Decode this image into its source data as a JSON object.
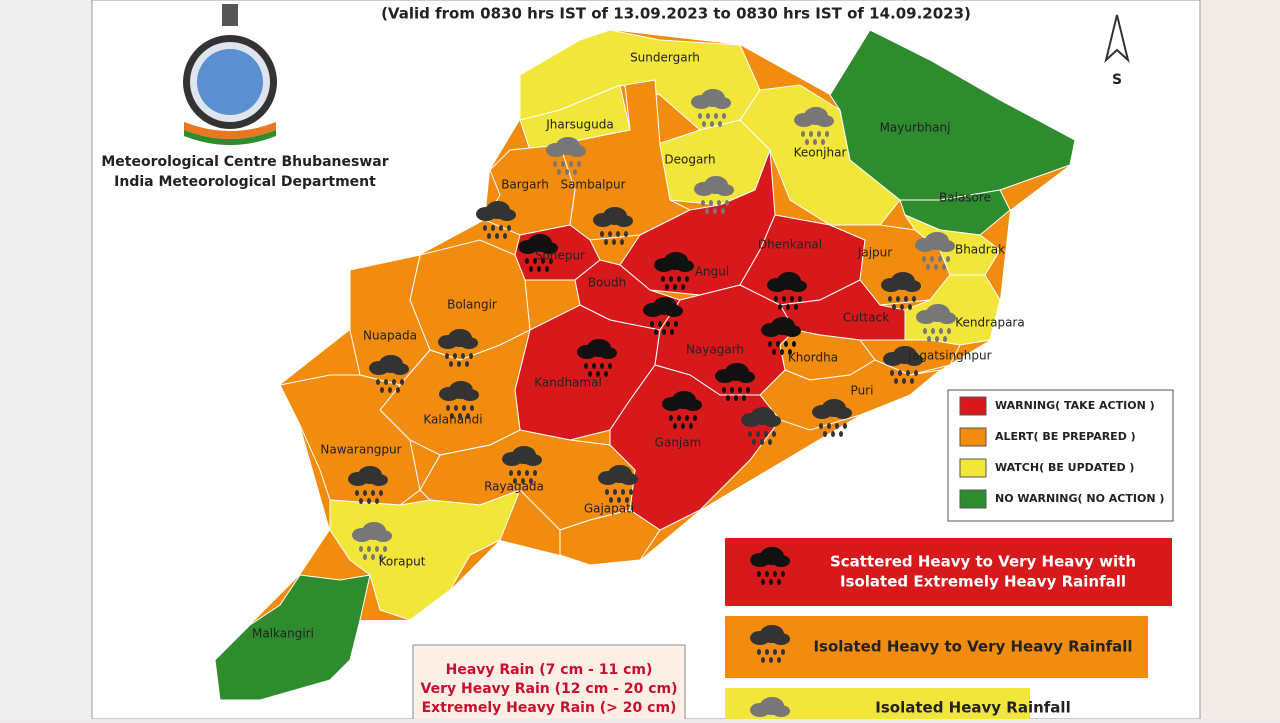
{
  "header": {
    "validity": "(Valid from 0830 hrs IST of 13.09.2023 to 0830 hrs IST of 14.09.2023)"
  },
  "organization": {
    "line1": "Meteorological Centre Bhubaneswar",
    "line2": "India Meteorological Department"
  },
  "north_arrow": "S",
  "warning_legend": [
    {
      "level": "warning",
      "label": "WARNING( TAKE ACTION )",
      "color": "#d7191c"
    },
    {
      "level": "alert",
      "label": "ALERT( BE PREPARED )",
      "color": "#f28c0f"
    },
    {
      "level": "watch",
      "label": "WATCH( BE UPDATED )",
      "color": "#f2e63a"
    },
    {
      "level": "none",
      "label": "NO WARNING( NO ACTION )",
      "color": "#2e8b2e"
    }
  ],
  "rain_legend": [
    {
      "rain": "extreme",
      "lines": [
        "Scattered Heavy to Very Heavy with",
        "Isolated Extremely Heavy Rainfall"
      ],
      "color": "#d7191c",
      "icon_color": "#111111"
    },
    {
      "rain": "veryheavy",
      "lines": [
        "Isolated Heavy to Very Heavy Rainfall"
      ],
      "color": "#f28c0f",
      "icon_color": "#333333"
    },
    {
      "rain": "heavy",
      "lines": [
        "Isolated Heavy Rainfall"
      ],
      "color": "#f2e63a",
      "icon_color": "#777777"
    }
  ],
  "rain_amounts": [
    "Heavy Rain (7 cm - 11 cm)",
    "Very Heavy Rain (12 cm - 20 cm)",
    "Extremely Heavy Rain (> 20 cm)"
  ],
  "districts": [
    {
      "name": "Sundergarh",
      "level": "watch",
      "rain": "heavy"
    },
    {
      "name": "Jharsuguda",
      "level": "watch",
      "rain": "heavy"
    },
    {
      "name": "Deogarh",
      "level": "watch",
      "rain": "heavy"
    },
    {
      "name": "Keonjhar",
      "level": "watch",
      "rain": "heavy"
    },
    {
      "name": "Mayurbhanj",
      "level": "none",
      "rain": null
    },
    {
      "name": "Balasore",
      "level": "none",
      "rain": null
    },
    {
      "name": "Bargarh",
      "level": "alert",
      "rain": "veryheavy"
    },
    {
      "name": "Sambalpur",
      "level": "alert",
      "rain": "veryheavy"
    },
    {
      "name": "Sonepur",
      "level": "warning",
      "rain": "extreme"
    },
    {
      "name": "Angul",
      "level": "warning",
      "rain": "extreme"
    },
    {
      "name": "Dhenkanal",
      "level": "warning",
      "rain": "extreme"
    },
    {
      "name": "Jajpur",
      "level": "alert",
      "rain": "veryheavy"
    },
    {
      "name": "Bhadrak",
      "level": "watch",
      "rain": "heavy"
    },
    {
      "name": "Boudh",
      "level": "warning",
      "rain": "extreme"
    },
    {
      "name": "Bolangir",
      "level": "alert",
      "rain": "veryheavy"
    },
    {
      "name": "Nuapada",
      "level": "alert",
      "rain": "veryheavy"
    },
    {
      "name": "Cuttack",
      "level": "warning",
      "rain": "extreme"
    },
    {
      "name": "Kendrapara",
      "level": "watch",
      "rain": "heavy"
    },
    {
      "name": "Jagatsinghpur",
      "level": "alert",
      "rain": "veryheavy"
    },
    {
      "name": "Kandhamal",
      "level": "warning",
      "rain": "extreme"
    },
    {
      "name": "Nayagarh",
      "level": "warning",
      "rain": "extreme"
    },
    {
      "name": "Khordha",
      "level": "alert",
      "rain": "veryheavy"
    },
    {
      "name": "Puri",
      "level": "alert",
      "rain": "veryheavy"
    },
    {
      "name": "Kalahandi",
      "level": "alert",
      "rain": "veryheavy"
    },
    {
      "name": "Nawarangpur",
      "level": "alert",
      "rain": "veryheavy"
    },
    {
      "name": "Ganjam",
      "level": "warning",
      "rain": "extreme"
    },
    {
      "name": "Rayagada",
      "level": "alert",
      "rain": "veryheavy"
    },
    {
      "name": "Gajapati",
      "level": "alert",
      "rain": "veryheavy"
    },
    {
      "name": "Koraput",
      "level": "watch",
      "rain": "heavy"
    },
    {
      "name": "Malkangiri",
      "level": "none",
      "rain": null
    }
  ]
}
